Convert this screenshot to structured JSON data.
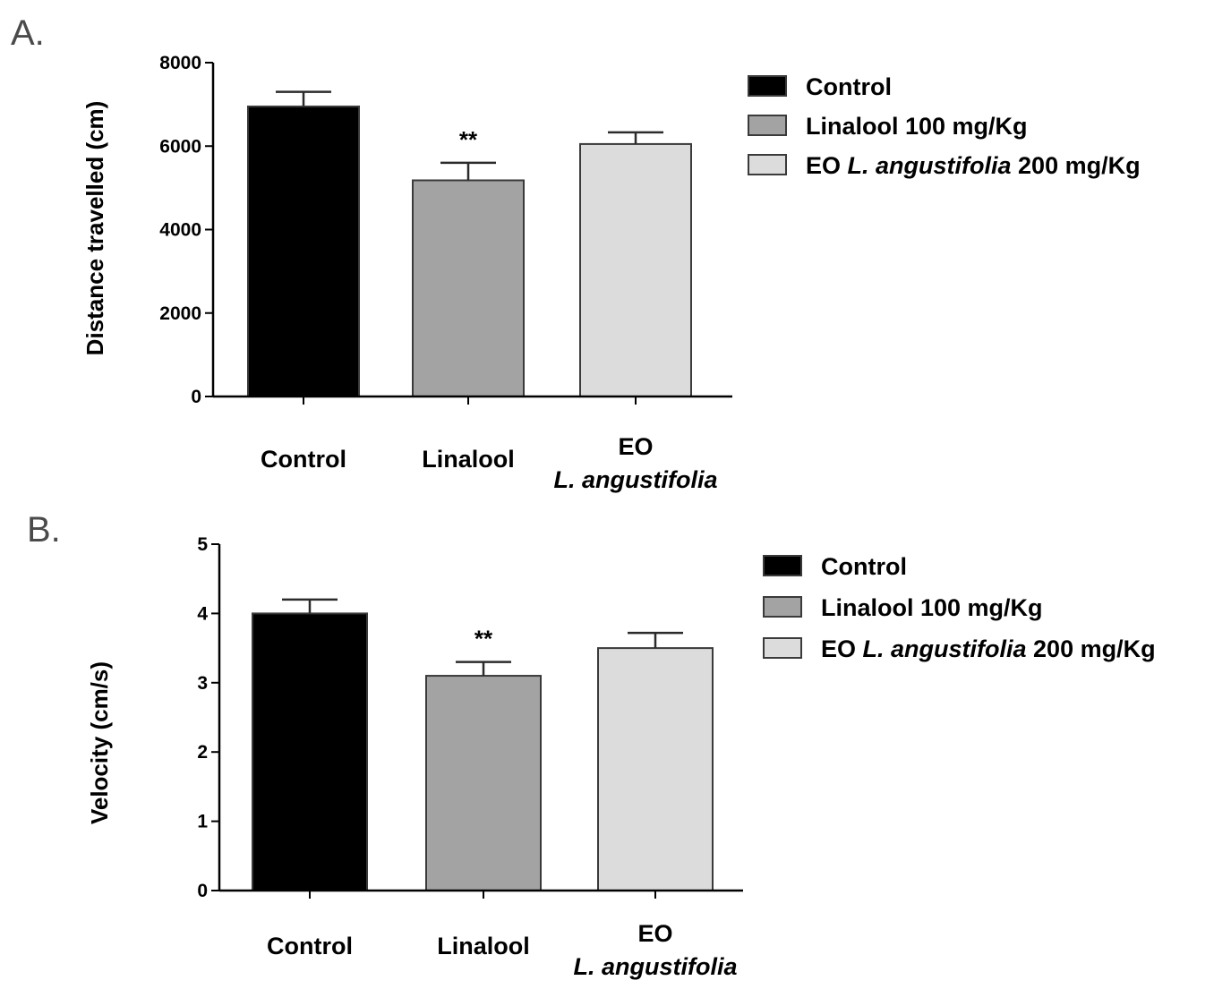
{
  "chart_data": [
    {
      "panel": "A.",
      "type": "bar",
      "categories": [
        "Control",
        "Linalool",
        "EO L. angustifolia"
      ],
      "category_labels": [
        {
          "line1": "Control",
          "line2": "",
          "line2_italic": false
        },
        {
          "line1": "Linalool",
          "line2": "",
          "line2_italic": false
        },
        {
          "line1": "EO",
          "line2": "L. angustifolia",
          "line2_italic": true
        }
      ],
      "values": [
        6950,
        5180,
        6050
      ],
      "errors": [
        350,
        420,
        280
      ],
      "significance": [
        "",
        "**",
        ""
      ],
      "colors": [
        "#000000",
        "#a3a3a3",
        "#dcdcdc"
      ],
      "ylabel": "Distance travelled (cm)",
      "xlabel": "",
      "ylim": [
        0,
        8000
      ],
      "yticks": [
        0,
        2000,
        4000,
        6000,
        8000
      ],
      "legend": [
        {
          "color": "#000000",
          "parts": [
            {
              "text": "Control",
              "italic": false
            }
          ]
        },
        {
          "color": "#a3a3a3",
          "parts": [
            {
              "text": "Linalool 100 mg/Kg",
              "italic": false
            }
          ]
        },
        {
          "color": "#dcdcdc",
          "parts": [
            {
              "text": "EO ",
              "italic": false
            },
            {
              "text": "L. angustifolia",
              "italic": true
            },
            {
              "text": " 200 mg/Kg",
              "italic": false
            }
          ]
        }
      ],
      "legend_position": "right",
      "grid": false
    },
    {
      "panel": "B.",
      "type": "bar",
      "categories": [
        "Control",
        "Linalool",
        "EO L. angustifolia"
      ],
      "category_labels": [
        {
          "line1": "Control",
          "line2": "",
          "line2_italic": false
        },
        {
          "line1": "Linalool",
          "line2": "",
          "line2_italic": false
        },
        {
          "line1": "EO",
          "line2": "L. angustifolia",
          "line2_italic": true
        }
      ],
      "values": [
        4.0,
        3.1,
        3.5
      ],
      "errors": [
        0.2,
        0.2,
        0.22
      ],
      "significance": [
        "",
        "**",
        ""
      ],
      "colors": [
        "#000000",
        "#a3a3a3",
        "#dcdcdc"
      ],
      "ylabel": "Velocity (cm/s)",
      "xlabel": "",
      "ylim": [
        0,
        5
      ],
      "yticks": [
        0,
        1,
        2,
        3,
        4,
        5
      ],
      "legend": [
        {
          "color": "#000000",
          "parts": [
            {
              "text": "Control",
              "italic": false
            }
          ]
        },
        {
          "color": "#a3a3a3",
          "parts": [
            {
              "text": "Linalool 100 mg/Kg",
              "italic": false
            }
          ]
        },
        {
          "color": "#dcdcdc",
          "parts": [
            {
              "text": "EO ",
              "italic": false
            },
            {
              "text": "L. angustifolia",
              "italic": true
            },
            {
              "text": " 200 mg/Kg",
              "italic": false
            }
          ]
        }
      ],
      "legend_position": "right",
      "grid": false
    }
  ]
}
